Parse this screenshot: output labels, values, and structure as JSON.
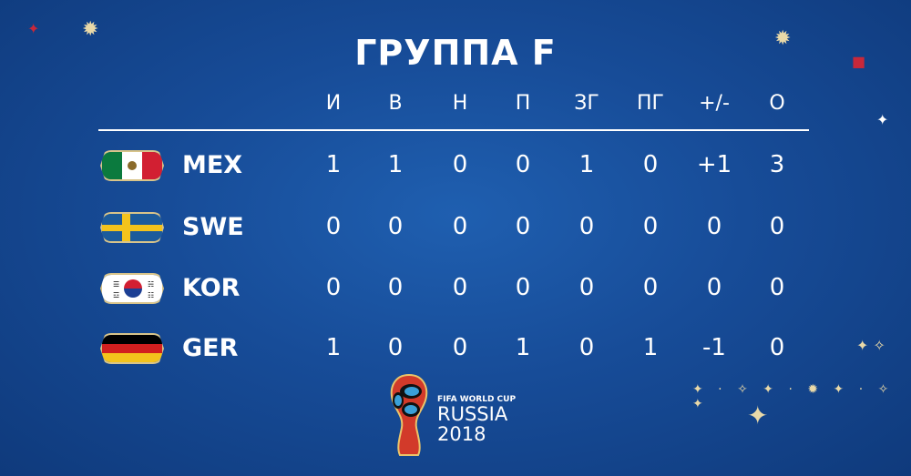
{
  "title": "ГРУППА F",
  "columns": [
    "И",
    "В",
    "Н",
    "П",
    "ЗГ",
    "ПГ",
    "+/-",
    "О"
  ],
  "rows": [
    {
      "team": "MEX",
      "flag": "mexico-flag",
      "values": [
        "1",
        "1",
        "0",
        "0",
        "1",
        "0",
        "+1",
        "3"
      ]
    },
    {
      "team": "SWE",
      "flag": "sweden-flag",
      "values": [
        "0",
        "0",
        "0",
        "0",
        "0",
        "0",
        "0",
        "0"
      ]
    },
    {
      "team": "KOR",
      "flag": "korea-flag",
      "values": [
        "0",
        "0",
        "0",
        "0",
        "0",
        "0",
        "0",
        "0"
      ]
    },
    {
      "team": "GER",
      "flag": "germany-flag",
      "values": [
        "1",
        "0",
        "0",
        "1",
        "0",
        "1",
        "-1",
        "0"
      ]
    }
  ],
  "logo": {
    "line1": "FIFA WORLD CUP",
    "line2": "RUSSIA",
    "line3": "2018"
  },
  "colors": {
    "background": "#174c98",
    "text": "#ffffff",
    "accent": "#e9d9a8"
  }
}
